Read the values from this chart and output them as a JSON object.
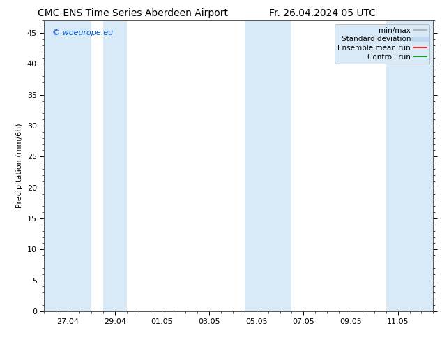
{
  "title_left": "CMC-ENS Time Series Aberdeen Airport",
  "title_right": "Fr. 26.04.2024 05 UTC",
  "ylabel": "Precipitation (mm/6h)",
  "watermark": "© woeurope.eu",
  "ylim": [
    0,
    47
  ],
  "yticks": [
    0,
    5,
    10,
    15,
    20,
    25,
    30,
    35,
    40,
    45
  ],
  "x_tick_labels": [
    "27.04",
    "29.04",
    "01.05",
    "03.05",
    "05.05",
    "07.05",
    "09.05",
    "11.05"
  ],
  "x_tick_positions": [
    1.0,
    3.0,
    5.0,
    7.0,
    9.0,
    11.0,
    13.0,
    15.0
  ],
  "x_min": 0.0,
  "x_max": 16.5,
  "shaded_bands": [
    {
      "x_start": 0.0,
      "x_end": 2.0
    },
    {
      "x_start": 2.5,
      "x_end": 3.5
    },
    {
      "x_start": 8.5,
      "x_end": 10.5
    },
    {
      "x_start": 14.5,
      "x_end": 16.5
    }
  ],
  "shade_color": "#d8eaf8",
  "background_color": "#ffffff",
  "legend_entries": [
    {
      "label": "min/max",
      "color": "#aaaaaa",
      "lw": 1.2
    },
    {
      "label": "Standard deviation",
      "color": "#c0d8f0",
      "lw": 5
    },
    {
      "label": "Ensemble mean run",
      "color": "#ff0000",
      "lw": 1.2
    },
    {
      "label": "Controll run",
      "color": "#008800",
      "lw": 1.2
    }
  ],
  "title_fontsize": 10,
  "ylabel_fontsize": 8,
  "tick_fontsize": 8,
  "watermark_color": "#0055cc",
  "watermark_fontsize": 8,
  "legend_fontsize": 7.5
}
